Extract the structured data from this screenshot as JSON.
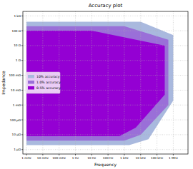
{
  "chart_data": {
    "type": "area",
    "title": "Accuracy plot",
    "x_label": "Frequency",
    "y_label": "Impedance",
    "log": true,
    "grid": true,
    "legend": "center left",
    "xlim": [
      0.0006,
      8000000
    ],
    "ylim": [
      5e-07,
      2000
    ],
    "xticks": [
      {
        "value": 0.001,
        "label": "1 mHz"
      },
      {
        "value": 0.01,
        "label": "10 mHz"
      },
      {
        "value": 0.1,
        "label": "100 mHz"
      },
      {
        "value": 1,
        "label": "1 Hz"
      },
      {
        "value": 10,
        "label": "10 Hz"
      },
      {
        "value": 100,
        "label": "100 Hz"
      },
      {
        "value": 1000,
        "label": "1 kHz"
      },
      {
        "value": 10000,
        "label": "10 kHz"
      },
      {
        "value": 100000,
        "label": "100 kHz"
      },
      {
        "value": 1000000,
        "label": "1 MHz"
      }
    ],
    "yticks": [
      {
        "value": 1e-06,
        "label": "1 µΩ"
      },
      {
        "value": 1e-05,
        "label": "10 µΩ"
      },
      {
        "value": 0.0001,
        "label": "100 µΩ"
      },
      {
        "value": 0.001,
        "label": "1 mΩ"
      },
      {
        "value": 0.01,
        "label": "10 mΩ"
      },
      {
        "value": 0.1,
        "label": "100 mΩ"
      },
      {
        "value": 1,
        "label": "1 Ω"
      },
      {
        "value": 10,
        "label": "10 Ω"
      },
      {
        "value": 100,
        "label": "100 Ω"
      },
      {
        "value": 1000,
        "label": "1 kΩ"
      }
    ],
    "series": [
      {
        "name": "10% accuracy",
        "color": "#a9b9de",
        "x": [
          0.001,
          10000,
          1000000,
          1000000,
          30000,
          2000,
          0.001
        ],
        "values": [
          400,
          400,
          50,
          0.002,
          5e-06,
          2e-06,
          2e-06
        ]
      },
      {
        "name": "1.0% accuracy",
        "color": "#9a6fd8",
        "x": [
          0.001,
          1000,
          500000,
          500000,
          10000,
          1000,
          0.001
        ],
        "values": [
          200,
          200,
          25,
          0.001,
          1e-05,
          4e-06,
          4e-06
        ]
      },
      {
        "name": "0.5% accuracy",
        "color": "#9400d3",
        "x": [
          0.001,
          10,
          300000,
          300000,
          5000,
          500,
          0.001
        ],
        "values": [
          100,
          100,
          10,
          0.005,
          3e-05,
          8e-06,
          8e-06
        ]
      }
    ]
  }
}
